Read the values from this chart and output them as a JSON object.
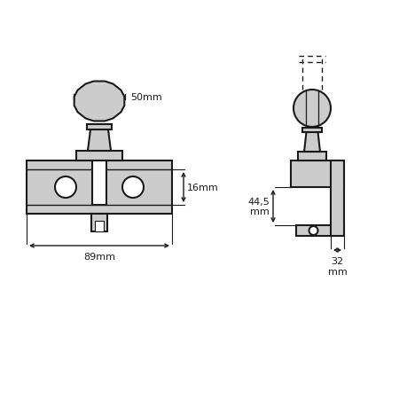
{
  "bg_color": "#ffffff",
  "line_color": "#1a1a1a",
  "fill_color": "#cccccc",
  "fig_width": 4.6,
  "fig_height": 4.6,
  "dpi": 100,
  "dim_50mm_text": "50mm",
  "dim_89mm_text": "89mm",
  "dim_16mm_text": "16mm",
  "dim_445mm_text": "44,5\nmm",
  "dim_32mm_text": "32\nmm",
  "font_size": 8.0
}
